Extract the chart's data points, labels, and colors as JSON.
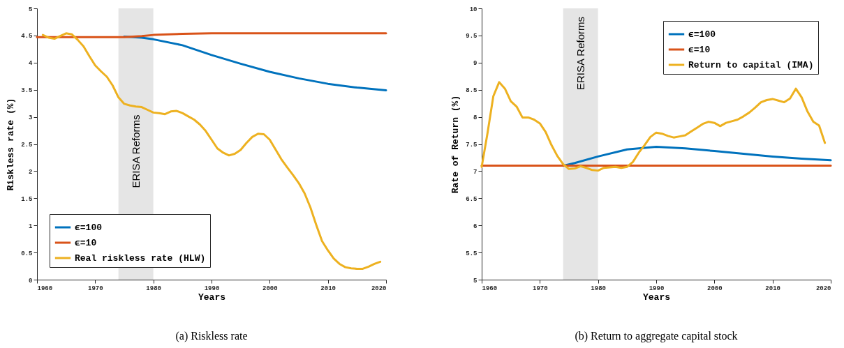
{
  "chart_data": [
    {
      "type": "line",
      "title": "(a) Riskless rate",
      "xlabel": "Years",
      "ylabel": "Riskless rate (%)",
      "xlim": [
        1960,
        2020
      ],
      "xticks": [
        1960,
        1970,
        1980,
        1990,
        2000,
        2010,
        2020
      ],
      "ylim": [
        0,
        5
      ],
      "yticks": [
        0,
        0.5,
        1,
        1.5,
        2,
        2.5,
        3,
        3.5,
        4,
        4.5,
        5
      ],
      "grid": false,
      "legend": "bottom left",
      "bands": [
        {
          "axis": "x",
          "from": 1974,
          "to": 1980,
          "label": "ERISA Reforms",
          "color": "#e5e5e5"
        }
      ],
      "series": [
        {
          "name": "ϵ=100",
          "color": "#0072bd",
          "x": [
            1975,
            1978,
            1980,
            1985,
            1990,
            1995,
            2000,
            2005,
            2010,
            2015,
            2020
          ],
          "values": [
            4.48,
            4.46,
            4.43,
            4.32,
            4.14,
            3.98,
            3.83,
            3.71,
            3.61,
            3.54,
            3.49
          ]
        },
        {
          "name": "ϵ=10",
          "color": "#d95319",
          "x": [
            1960,
            1965,
            1970,
            1975,
            1978,
            1980,
            1985,
            1990,
            2000,
            2010,
            2020
          ],
          "values": [
            4.47,
            4.47,
            4.47,
            4.47,
            4.49,
            4.51,
            4.53,
            4.54,
            4.54,
            4.54,
            4.54
          ]
        },
        {
          "name": "Real riskless rate (HLW)",
          "color": "#edb120",
          "x": [
            1961,
            1962,
            1963,
            1964,
            1965,
            1966,
            1967,
            1968,
            1969,
            1970,
            1971,
            1972,
            1973,
            1974,
            1975,
            1976,
            1977,
            1978,
            1979,
            1980,
            1981,
            1982,
            1983,
            1984,
            1985,
            1986,
            1987,
            1988,
            1989,
            1990,
            1991,
            1992,
            1993,
            1994,
            1995,
            1996,
            1997,
            1998,
            1999,
            2000,
            2001,
            2002,
            2003,
            2004,
            2005,
            2006,
            2007,
            2008,
            2009,
            2010,
            2011,
            2012,
            2013,
            2014,
            2015,
            2016,
            2017,
            2018,
            2019
          ],
          "values": [
            4.51,
            4.46,
            4.44,
            4.49,
            4.54,
            4.52,
            4.42,
            4.3,
            4.12,
            3.95,
            3.84,
            3.74,
            3.58,
            3.36,
            3.24,
            3.21,
            3.19,
            3.18,
            3.13,
            3.08,
            3.07,
            3.05,
            3.1,
            3.11,
            3.07,
            3.01,
            2.95,
            2.86,
            2.74,
            2.58,
            2.42,
            2.34,
            2.29,
            2.32,
            2.39,
            2.52,
            2.63,
            2.69,
            2.68,
            2.58,
            2.4,
            2.22,
            2.07,
            1.93,
            1.78,
            1.59,
            1.33,
            1.01,
            0.71,
            0.54,
            0.39,
            0.29,
            0.23,
            0.21,
            0.2,
            0.2,
            0.24,
            0.29,
            0.33
          ]
        }
      ]
    },
    {
      "type": "line",
      "title": "(b) Return to aggregate capital stock",
      "xlabel": "Years",
      "ylabel": "Rate of Return (%)",
      "xlim": [
        1960,
        2020
      ],
      "xticks": [
        1960,
        1970,
        1980,
        1990,
        2000,
        2010,
        2020
      ],
      "ylim": [
        5,
        10
      ],
      "yticks": [
        5,
        5.5,
        6,
        6.5,
        7,
        7.5,
        8,
        8.5,
        9,
        9.5,
        10
      ],
      "grid": false,
      "legend": "top right",
      "bands": [
        {
          "axis": "x",
          "from": 1974,
          "to": 1980,
          "label": "ERISA Reforms",
          "color": "#e5e5e5"
        }
      ],
      "series": [
        {
          "name": "ϵ=100",
          "color": "#0072bd",
          "x": [
            1974,
            1976,
            1980,
            1985,
            1990,
            1995,
            2000,
            2005,
            2010,
            2015,
            2020
          ],
          "values": [
            7.1,
            7.15,
            7.27,
            7.4,
            7.45,
            7.42,
            7.37,
            7.32,
            7.27,
            7.23,
            7.2
          ]
        },
        {
          "name": "ϵ=10",
          "color": "#d95319",
          "x": [
            1960,
            1980,
            2000,
            2020
          ],
          "values": [
            7.1,
            7.1,
            7.1,
            7.1
          ]
        },
        {
          "name": "Return to capital (IMA)",
          "color": "#edb120",
          "x": [
            1960,
            1961,
            1962,
            1963,
            1964,
            1965,
            1966,
            1967,
            1968,
            1969,
            1970,
            1971,
            1972,
            1973,
            1974,
            1975,
            1976,
            1977,
            1978,
            1979,
            1980,
            1981,
            1982,
            1983,
            1984,
            1985,
            1986,
            1987,
            1988,
            1989,
            1990,
            1991,
            1992,
            1993,
            1994,
            1995,
            1996,
            1997,
            1998,
            1999,
            2000,
            2001,
            2002,
            2003,
            2004,
            2005,
            2006,
            2007,
            2008,
            2009,
            2010,
            2011,
            2012,
            2013,
            2014,
            2015,
            2016,
            2017,
            2018,
            2019
          ],
          "values": [
            7.08,
            7.7,
            8.38,
            8.64,
            8.52,
            8.29,
            8.19,
            7.99,
            7.99,
            7.95,
            7.88,
            7.72,
            7.48,
            7.28,
            7.13,
            7.04,
            7.05,
            7.09,
            7.06,
            7.02,
            7.01,
            7.06,
            7.07,
            7.08,
            7.06,
            7.08,
            7.17,
            7.34,
            7.48,
            7.63,
            7.71,
            7.69,
            7.65,
            7.62,
            7.64,
            7.66,
            7.73,
            7.8,
            7.87,
            7.91,
            7.89,
            7.83,
            7.89,
            7.92,
            7.95,
            8.01,
            8.08,
            8.17,
            8.27,
            8.31,
            8.33,
            8.3,
            8.27,
            8.34,
            8.52,
            8.36,
            8.1,
            7.91,
            7.84,
            7.52
          ]
        }
      ]
    }
  ]
}
